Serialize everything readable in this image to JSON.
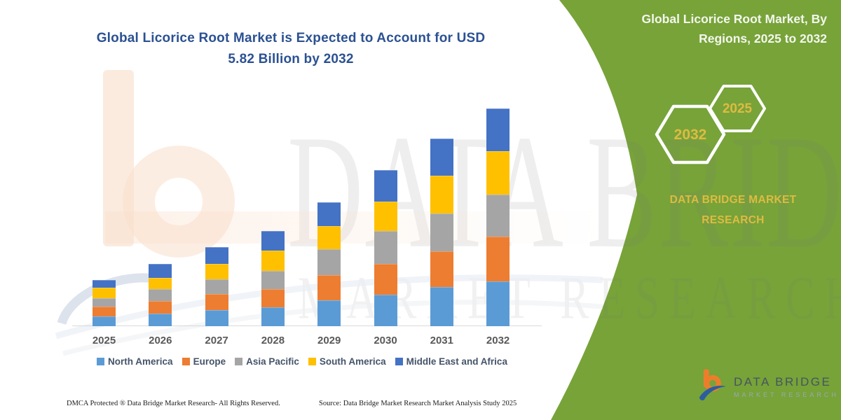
{
  "header": {
    "title_line1": "Global Licorice Root Market is Expected to Account for USD",
    "title_line2": "5.82 Billion by 2032"
  },
  "side_panel": {
    "title_line1": "Global Licorice Root Market, By",
    "title_line2": "Regions, 2025 to 2032",
    "hexagon_big": "2032",
    "hexagon_small": "2025",
    "brand_line1": "DATA BRIDGE MARKET",
    "brand_line2": "RESEARCH"
  },
  "chart_data": {
    "type": "bar",
    "stacked": true,
    "title": "Global Licorice Root Market is Expected to Account for USD 5.82 Billion by 2032",
    "unit": "USD Billion",
    "xlabel": "",
    "ylabel": "",
    "y_axis_visible": false,
    "legend_position": "bottom",
    "categories": [
      "2025",
      "2026",
      "2027",
      "2028",
      "2029",
      "2030",
      "2031",
      "2032"
    ],
    "series": [
      {
        "name": "North America",
        "color": "#5B9BD5",
        "values": [
          0.27,
          0.33,
          0.43,
          0.51,
          0.69,
          0.84,
          1.05,
          1.2
        ]
      },
      {
        "name": "Europe",
        "color": "#ED7D31",
        "values": [
          0.25,
          0.34,
          0.43,
          0.48,
          0.67,
          0.83,
          0.95,
          1.2
        ]
      },
      {
        "name": "Asia Pacific",
        "color": "#A5A5A5",
        "values": [
          0.23,
          0.32,
          0.39,
          0.5,
          0.7,
          0.87,
          1.02,
          1.12
        ]
      },
      {
        "name": "South America",
        "color": "#FFC000",
        "values": [
          0.28,
          0.3,
          0.41,
          0.53,
          0.62,
          0.79,
          1.0,
          1.16
        ]
      },
      {
        "name": "Middle East and Africa",
        "color": "#4472C4",
        "values": [
          0.2,
          0.37,
          0.46,
          0.53,
          0.64,
          0.85,
          1.0,
          1.14
        ]
      }
    ],
    "totals": [
      1.23,
      1.66,
      2.12,
      2.55,
      3.32,
      4.18,
      5.02,
      5.82
    ]
  },
  "watermark": {
    "line1": "DATA BRIDGE",
    "line2": "MARKET RESEARCH"
  },
  "footer": {
    "dmca": "DMCA Protected ® Data Bridge Market Research-  All Rights Reserved.",
    "source": "Source: Data Bridge Market Research  Market Analysis Study 2025"
  },
  "logo": {
    "name": "DATA BRIDGE",
    "subtitle": "MARKET RESEARCH"
  },
  "colors": {
    "panel_green": "#77A339",
    "gold": "#DEBB41",
    "title_blue": "#2B5192",
    "legend_color": "#44546A",
    "axis_gray": "#D9D9D9",
    "year_color": "#595959",
    "logo_orange": "#EC7E2B",
    "logo_blue": "#2D5D9F"
  }
}
